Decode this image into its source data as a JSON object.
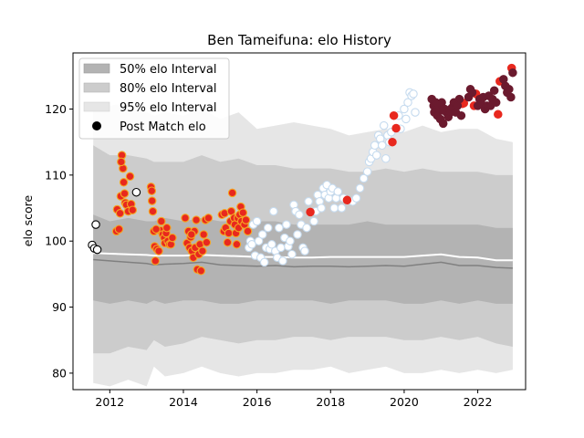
{
  "chart_data": {
    "type": "scatter",
    "title": "Ben Tameifuna: elo History",
    "xlabel": "",
    "ylabel": "elo score",
    "xlim": [
      2011.0,
      2023.3
    ],
    "ylim": [
      77.5,
      128.5
    ],
    "xticks": [
      2012,
      2014,
      2016,
      2018,
      2020,
      2022
    ],
    "yticks": [
      80,
      90,
      100,
      110,
      120
    ],
    "legend_position": "top-left",
    "legend": [
      {
        "label": "50% elo Interval",
        "kind": "patch",
        "color": "#b3b3b3"
      },
      {
        "label": "80% elo Interval",
        "kind": "patch",
        "color": "#cccccc"
      },
      {
        "label": "95% elo Interval",
        "kind": "patch",
        "color": "#e6e6e6"
      },
      {
        "label": "Post Match elo",
        "kind": "marker",
        "color": "#000000"
      }
    ],
    "bands": {
      "x": [
        2011.55,
        2012.0,
        2012.5,
        2013.0,
        2013.2,
        2013.5,
        2014.0,
        2014.5,
        2015.0,
        2015.5,
        2016.0,
        2016.5,
        2017.0,
        2017.5,
        2018.0,
        2018.5,
        2019.0,
        2019.5,
        2020.0,
        2020.5,
        2021.0,
        2021.5,
        2022.0,
        2022.5,
        2022.95
      ],
      "p95_low": [
        78.5,
        78.0,
        79.0,
        78.0,
        81.0,
        79.5,
        80.0,
        81.0,
        80.0,
        79.5,
        80.0,
        80.0,
        80.5,
        80.5,
        81.0,
        80.0,
        80.5,
        81.0,
        80.0,
        80.0,
        80.5,
        80.0,
        80.5,
        80.0,
        80.5
      ],
      "p95_high": [
        121.0,
        120.5,
        121.0,
        119.5,
        119.0,
        119.5,
        119.0,
        120.0,
        118.5,
        119.5,
        117.0,
        117.5,
        118.0,
        117.5,
        117.0,
        116.0,
        116.5,
        117.0,
        116.5,
        117.5,
        116.5,
        117.0,
        117.0,
        115.5,
        115.0
      ],
      "p80_low": [
        83.0,
        83.0,
        84.0,
        83.5,
        85.0,
        84.0,
        84.5,
        85.5,
        85.0,
        84.5,
        85.0,
        85.0,
        85.5,
        85.5,
        85.0,
        85.5,
        85.5,
        85.5,
        85.0,
        85.0,
        85.5,
        85.0,
        85.5,
        84.5,
        84.0
      ],
      "p80_high": [
        114.5,
        113.0,
        113.0,
        112.5,
        112.0,
        112.0,
        112.0,
        113.0,
        112.0,
        112.5,
        111.5,
        111.5,
        111.0,
        111.0,
        111.0,
        110.5,
        110.5,
        111.0,
        110.5,
        111.0,
        110.5,
        110.5,
        110.5,
        110.0,
        110.0
      ],
      "p50_low": [
        91.0,
        90.5,
        91.0,
        90.5,
        91.0,
        90.5,
        91.0,
        91.0,
        90.5,
        90.5,
        91.0,
        91.0,
        91.0,
        91.0,
        90.5,
        91.0,
        91.0,
        91.0,
        90.5,
        90.5,
        91.0,
        90.5,
        91.0,
        90.5,
        90.5
      ],
      "p50_high": [
        104.0,
        103.0,
        103.5,
        103.0,
        103.0,
        103.5,
        103.0,
        103.5,
        103.0,
        103.0,
        103.0,
        103.0,
        102.5,
        102.5,
        102.5,
        102.5,
        103.0,
        102.5,
        102.5,
        102.5,
        102.5,
        102.5,
        102.5,
        102.0,
        102.0
      ],
      "median": [
        97.2,
        97.0,
        96.8,
        96.6,
        96.4,
        96.5,
        96.6,
        96.8,
        96.4,
        96.3,
        96.2,
        96.3,
        96.1,
        96.2,
        96.2,
        96.1,
        96.2,
        96.3,
        96.2,
        96.5,
        96.8,
        96.3,
        96.3,
        96.0,
        95.9
      ],
      "mean": [
        98.2,
        98.1,
        98.0,
        97.9,
        97.8,
        97.8,
        97.8,
        97.9,
        97.8,
        97.7,
        97.6,
        97.6,
        97.5,
        97.5,
        97.6,
        97.6,
        97.6,
        97.6,
        97.6,
        97.8,
        98.0,
        97.6,
        97.5,
        97.1,
        97.1
      ]
    },
    "series": [
      {
        "name": "early",
        "fill": "#ffffff",
        "stroke": "#000000",
        "points": [
          [
            2011.52,
            99.4
          ],
          [
            2011.58,
            98.9
          ],
          [
            2011.62,
            102.5
          ],
          [
            2011.66,
            98.7
          ],
          [
            2012.72,
            107.4
          ]
        ]
      },
      {
        "name": "orange-2012",
        "fill": "#e8281e",
        "stroke": "#f5a623",
        "points": [
          [
            2012.18,
            101.5
          ],
          [
            2012.2,
            104.8
          ],
          [
            2012.25,
            101.8
          ],
          [
            2012.3,
            106.8
          ],
          [
            2012.33,
            113.0
          ],
          [
            2012.36,
            111.0
          ],
          [
            2012.38,
            108.9
          ],
          [
            2012.42,
            105.8
          ],
          [
            2012.45,
            105.5
          ],
          [
            2012.5,
            104.5
          ],
          [
            2012.55,
            109.8
          ],
          [
            2012.58,
            105.6
          ],
          [
            2012.62,
            104.7
          ],
          [
            2012.28,
            104.2
          ],
          [
            2012.31,
            112.0
          ],
          [
            2012.4,
            107.2
          ]
        ]
      },
      {
        "name": "orange-2013",
        "fill": "#e8281e",
        "stroke": "#f5a623",
        "points": [
          [
            2013.12,
            108.2
          ],
          [
            2013.15,
            106.1
          ],
          [
            2013.17,
            104.5
          ],
          [
            2013.2,
            101.5
          ],
          [
            2013.22,
            99.2
          ],
          [
            2013.24,
            97.0
          ],
          [
            2013.28,
            98.8
          ],
          [
            2013.33,
            98.5
          ],
          [
            2013.38,
            101.6
          ],
          [
            2013.4,
            103.0
          ],
          [
            2013.44,
            101.0
          ],
          [
            2013.48,
            100.5
          ],
          [
            2013.5,
            99.7
          ],
          [
            2013.53,
            101.2
          ],
          [
            2013.55,
            102.0
          ],
          [
            2013.58,
            100.0
          ],
          [
            2013.62,
            99.5
          ],
          [
            2013.66,
            99.5
          ],
          [
            2013.7,
            100.5
          ],
          [
            2013.14,
            107.6
          ],
          [
            2013.26,
            101.8
          ]
        ]
      },
      {
        "name": "orange-2014",
        "fill": "#e8281e",
        "stroke": "#f5a623",
        "points": [
          [
            2014.05,
            103.5
          ],
          [
            2014.1,
            99.7
          ],
          [
            2014.14,
            101.5
          ],
          [
            2014.17,
            99.0
          ],
          [
            2014.2,
            100.6
          ],
          [
            2014.23,
            98.5
          ],
          [
            2014.27,
            97.5
          ],
          [
            2014.3,
            101.5
          ],
          [
            2014.32,
            99.0
          ],
          [
            2014.35,
            103.2
          ],
          [
            2014.38,
            95.7
          ],
          [
            2014.42,
            98.0
          ],
          [
            2014.45,
            99.5
          ],
          [
            2014.48,
            95.5
          ],
          [
            2014.52,
            98.5
          ],
          [
            2014.55,
            101.0
          ],
          [
            2014.6,
            103.2
          ],
          [
            2014.63,
            99.8
          ],
          [
            2014.68,
            103.5
          ],
          [
            2014.22,
            101.0
          ]
        ]
      },
      {
        "name": "orange-2015",
        "fill": "#e8281e",
        "stroke": "#f5a623",
        "points": [
          [
            2015.05,
            104.0
          ],
          [
            2015.1,
            101.5
          ],
          [
            2015.12,
            104.2
          ],
          [
            2015.15,
            102.0
          ],
          [
            2015.2,
            99.8
          ],
          [
            2015.23,
            101.2
          ],
          [
            2015.28,
            103.0
          ],
          [
            2015.3,
            104.5
          ],
          [
            2015.33,
            107.3
          ],
          [
            2015.38,
            103.5
          ],
          [
            2015.4,
            102.5
          ],
          [
            2015.43,
            101.2
          ],
          [
            2015.48,
            103.5
          ],
          [
            2015.5,
            102.0
          ],
          [
            2015.53,
            104.0
          ],
          [
            2015.56,
            105.2
          ],
          [
            2015.58,
            103.0
          ],
          [
            2015.62,
            104.3
          ],
          [
            2015.66,
            102.5
          ],
          [
            2015.7,
            103.2
          ],
          [
            2015.75,
            101.5
          ],
          [
            2015.45,
            99.5
          ]
        ]
      },
      {
        "name": "white-2016",
        "fill": "#ffffff",
        "stroke": "#c6dbef",
        "points": [
          [
            2015.78,
            99.0
          ],
          [
            2015.82,
            100.0
          ],
          [
            2015.86,
            99.5
          ],
          [
            2015.9,
            102.5
          ],
          [
            2015.95,
            97.8
          ],
          [
            2016.0,
            103.0
          ],
          [
            2016.05,
            100.0
          ],
          [
            2016.1,
            97.5
          ],
          [
            2016.15,
            101.0
          ],
          [
            2016.2,
            96.8
          ],
          [
            2016.25,
            99.0
          ],
          [
            2016.3,
            102.0
          ],
          [
            2016.35,
            98.8
          ],
          [
            2016.4,
            99.5
          ],
          [
            2016.45,
            104.5
          ],
          [
            2016.5,
            98.5
          ],
          [
            2016.55,
            97.5
          ],
          [
            2016.6,
            102.0
          ],
          [
            2016.65,
            99.0
          ],
          [
            2016.7,
            97.0
          ],
          [
            2016.75,
            100.5
          ],
          [
            2016.8,
            102.5
          ],
          [
            2016.85,
            99.2
          ],
          [
            2016.9,
            100.0
          ],
          [
            2016.95,
            98.0
          ],
          [
            2017.0,
            105.5
          ],
          [
            2017.05,
            104.5
          ],
          [
            2017.1,
            101.0
          ],
          [
            2017.15,
            104.0
          ],
          [
            2017.2,
            102.5
          ],
          [
            2017.25,
            99.0
          ],
          [
            2017.3,
            98.5
          ],
          [
            2017.35,
            102.0
          ],
          [
            2017.4,
            106.0
          ],
          [
            2017.55,
            103.0
          ],
          [
            2017.6,
            104.5
          ],
          [
            2017.65,
            107.0
          ],
          [
            2017.7,
            106.0
          ],
          [
            2017.75,
            105.0
          ],
          [
            2017.8,
            108.0
          ],
          [
            2017.85,
            107.0
          ],
          [
            2017.9,
            108.5
          ],
          [
            2017.95,
            106.5
          ],
          [
            2018.0,
            107.5
          ],
          [
            2018.05,
            108.0
          ],
          [
            2018.1,
            105.0
          ],
          [
            2018.15,
            106.5
          ],
          [
            2018.2,
            107.5
          ],
          [
            2018.3,
            105.0
          ],
          [
            2018.35,
            106.5
          ]
        ]
      },
      {
        "name": "white-2019",
        "fill": "#ffffff",
        "stroke": "#c6dbef",
        "points": [
          [
            2018.6,
            106.0
          ],
          [
            2018.7,
            106.5
          ],
          [
            2018.8,
            108.0
          ],
          [
            2018.9,
            109.5
          ],
          [
            2019.0,
            110.5
          ],
          [
            2019.05,
            112.0
          ],
          [
            2019.1,
            112.5
          ],
          [
            2019.15,
            113.5
          ],
          [
            2019.2,
            114.5
          ],
          [
            2019.25,
            113.0
          ],
          [
            2019.3,
            116.0
          ],
          [
            2019.35,
            115.5
          ],
          [
            2019.4,
            114.5
          ],
          [
            2019.45,
            117.5
          ],
          [
            2019.5,
            112.5
          ],
          [
            2019.55,
            116.0
          ],
          [
            2019.6,
            115.0
          ],
          [
            2019.65,
            116.5
          ],
          [
            2019.85,
            119.0
          ],
          [
            2019.9,
            117.0
          ],
          [
            2020.0,
            120.0
          ],
          [
            2020.1,
            121.0
          ],
          [
            2020.15,
            122.5
          ],
          [
            2020.2,
            122.0
          ],
          [
            2020.25,
            122.3
          ],
          [
            2020.3,
            119.5
          ],
          [
            2020.05,
            118.5
          ]
        ]
      },
      {
        "name": "red",
        "fill": "#e8281e",
        "stroke": "#e8281e",
        "points": [
          [
            2017.45,
            104.4
          ],
          [
            2018.45,
            106.2
          ],
          [
            2019.68,
            115.0
          ],
          [
            2019.72,
            119.0
          ],
          [
            2019.78,
            117.1
          ],
          [
            2021.58,
            120.8
          ],
          [
            2021.62,
            120.9
          ],
          [
            2021.9,
            120.5
          ],
          [
            2021.95,
            122.3
          ],
          [
            2022.55,
            119.2
          ],
          [
            2022.6,
            124.2
          ],
          [
            2022.92,
            126.2
          ]
        ]
      },
      {
        "name": "maroon",
        "fill": "#6b1a2e",
        "stroke": "#6b1a2e",
        "points": [
          [
            2020.75,
            121.5
          ],
          [
            2020.8,
            120.5
          ],
          [
            2020.82,
            119.5
          ],
          [
            2020.86,
            121.0
          ],
          [
            2020.9,
            119.0
          ],
          [
            2020.94,
            120.0
          ],
          [
            2020.98,
            118.5
          ],
          [
            2021.02,
            121.0
          ],
          [
            2021.06,
            117.8
          ],
          [
            2021.1,
            120.0
          ],
          [
            2021.15,
            119.5
          ],
          [
            2021.2,
            118.8
          ],
          [
            2021.25,
            119.5
          ],
          [
            2021.3,
            120.2
          ],
          [
            2021.35,
            121.0
          ],
          [
            2021.4,
            119.5
          ],
          [
            2021.45,
            120.5
          ],
          [
            2021.5,
            121.5
          ],
          [
            2021.55,
            119.0
          ],
          [
            2021.75,
            121.8
          ],
          [
            2021.8,
            123.0
          ],
          [
            2021.85,
            122.5
          ],
          [
            2022.0,
            120.5
          ],
          [
            2022.05,
            121.5
          ],
          [
            2022.1,
            120.8
          ],
          [
            2022.15,
            121.8
          ],
          [
            2022.2,
            120.0
          ],
          [
            2022.25,
            120.5
          ],
          [
            2022.3,
            122.0
          ],
          [
            2022.35,
            120.5
          ],
          [
            2022.4,
            121.5
          ],
          [
            2022.45,
            122.8
          ],
          [
            2022.5,
            121.0
          ],
          [
            2022.7,
            124.5
          ],
          [
            2022.75,
            123.5
          ],
          [
            2022.8,
            122.5
          ],
          [
            2022.85,
            123.0
          ],
          [
            2022.9,
            121.8
          ],
          [
            2022.95,
            125.5
          ],
          [
            2021.05,
            119.8
          ],
          [
            2020.88,
            120.8
          ]
        ]
      }
    ]
  }
}
